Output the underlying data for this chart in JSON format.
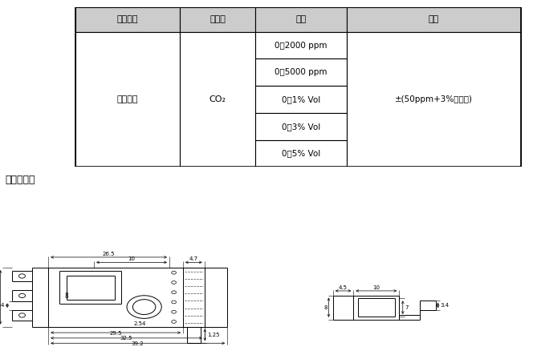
{
  "table": {
    "headers": [
      "气体名称",
      "分子式",
      "量程",
      "精度"
    ],
    "ranges": [
      "0～2000 ppm",
      "0～5000 ppm",
      "0～1% Vol",
      "0～3% Vol",
      "0～5% Vol"
    ],
    "molecule": "CO₂",
    "name": "二氧化碳",
    "accuracy": "±(50ppm+3%读数值)"
  },
  "section_title": "产品尺寸图",
  "bg_color": "#ffffff",
  "line_color": "#000000",
  "text_color": "#000000",
  "header_bg": "#cccccc"
}
